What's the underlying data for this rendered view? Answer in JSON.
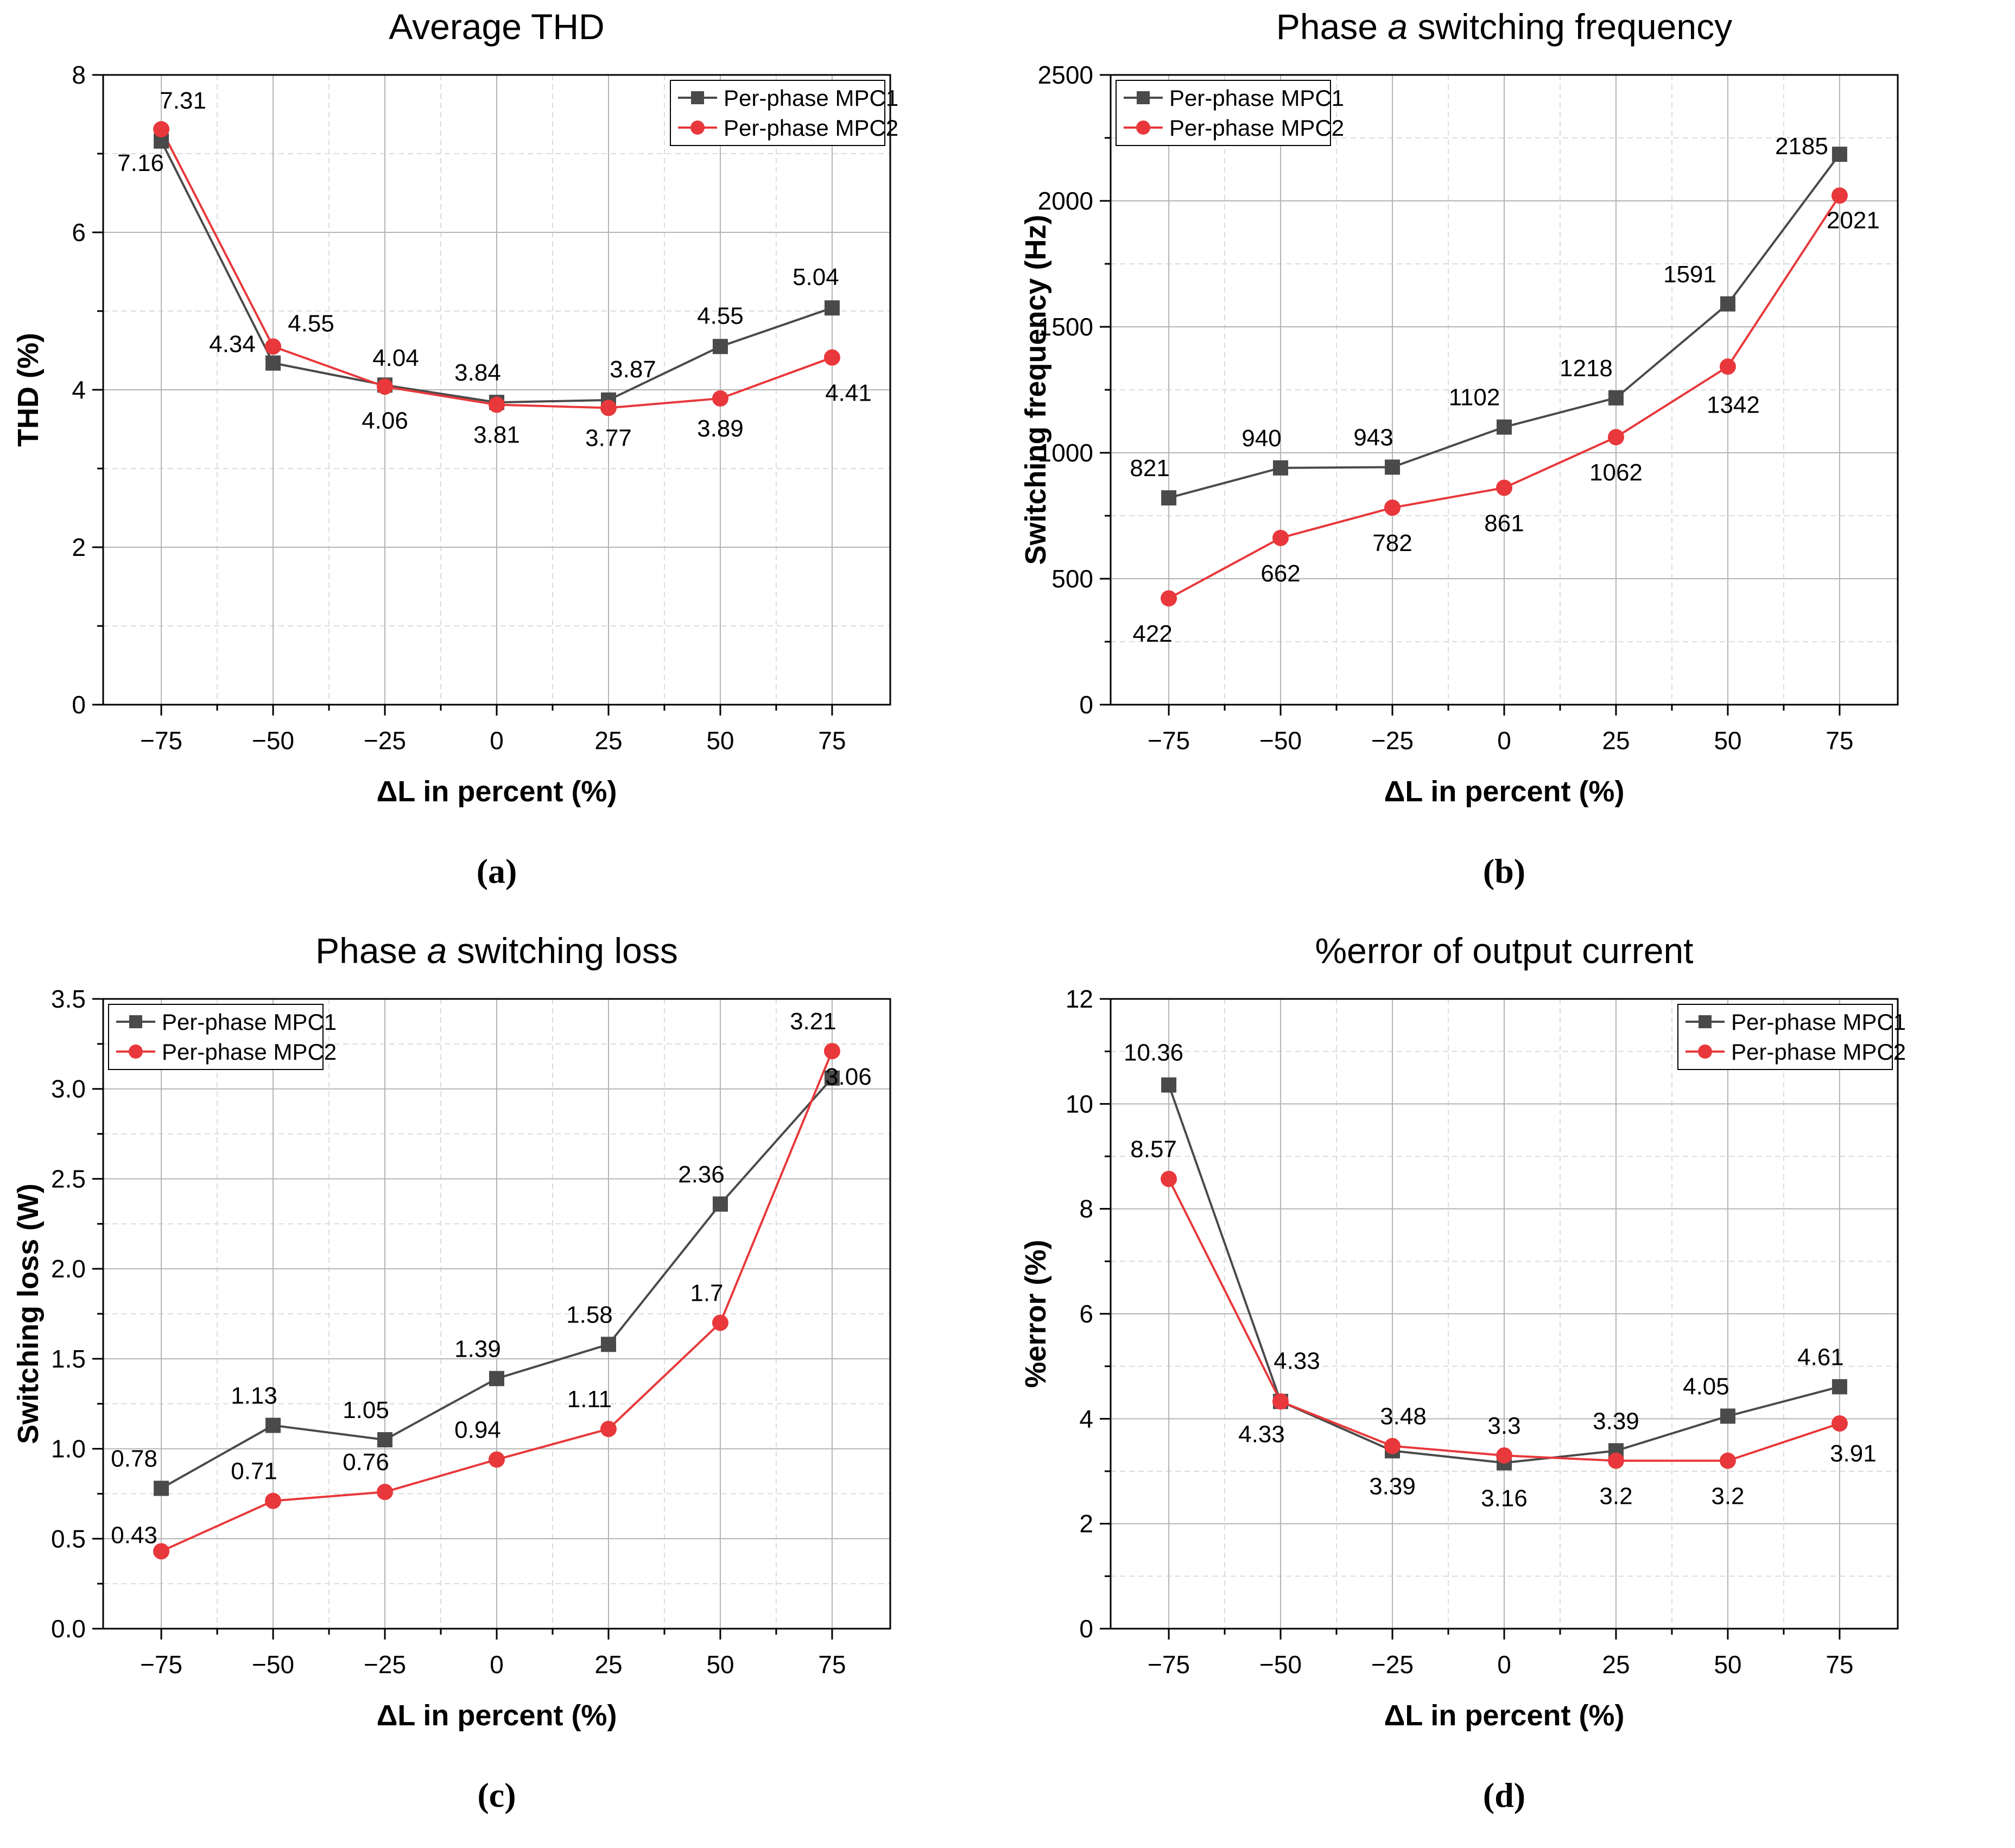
{
  "figure": {
    "panels": [
      {
        "id": "a",
        "caption": "(a)",
        "title_parts": [
          "Average THD"
        ]
      },
      {
        "id": "b",
        "caption": "(b)",
        "title_parts": [
          "Phase ",
          "a",
          " switching frequency"
        ]
      },
      {
        "id": "c",
        "caption": "(c)",
        "title_parts": [
          "Phase ",
          "a",
          " switching loss"
        ]
      },
      {
        "id": "d",
        "caption": "(d)",
        "title_parts": [
          "%error of output current"
        ]
      }
    ]
  },
  "colors": {
    "mpc1": "#4a4a4a",
    "mpc2": "#e8383b",
    "grid_major": "#b4b4b4",
    "grid_minor": "#dcdcdc",
    "axis": "#000000"
  },
  "chart_data": [
    {
      "type": "line",
      "title": "Average THD",
      "xlabel": "ΔL in percent (%)",
      "ylabel": "THD (%)",
      "x": [
        -75,
        -50,
        -25,
        0,
        25,
        50,
        75
      ],
      "xticks": [
        "−75",
        "−50",
        "−25",
        "0",
        "25",
        "50",
        "75"
      ],
      "xlim": [
        -88,
        88
      ],
      "ylim": [
        0,
        8
      ],
      "yticks": [
        "0",
        "2",
        "4",
        "6",
        "8"
      ],
      "ytick_values": [
        0,
        2,
        4,
        6,
        8
      ],
      "legend_position": "top-right",
      "series": [
        {
          "name": "Per-phase MPC1",
          "marker": "square",
          "values": [
            7.16,
            4.34,
            4.06,
            3.84,
            3.87,
            4.55,
            5.04
          ],
          "labels": [
            "7.16",
            "4.34",
            "4.06",
            "3.84",
            "3.87",
            "4.55",
            "5.04"
          ]
        },
        {
          "name": "Per-phase MPC2",
          "marker": "circle",
          "values": [
            7.31,
            4.55,
            4.04,
            3.81,
            3.77,
            3.89,
            4.41
          ],
          "labels": [
            "7.31",
            "4.55",
            "4.04",
            "3.81",
            "3.77",
            "3.89",
            "4.41"
          ]
        }
      ]
    },
    {
      "type": "line",
      "title": "Phase a switching frequency",
      "xlabel": "ΔL in percent (%)",
      "ylabel": "Switching frequency (Hz)",
      "x": [
        -75,
        -50,
        -25,
        0,
        25,
        50,
        75
      ],
      "xticks": [
        "−75",
        "−50",
        "−25",
        "0",
        "25",
        "50",
        "75"
      ],
      "xlim": [
        -88,
        88
      ],
      "ylim": [
        0,
        2500
      ],
      "yticks": [
        "0",
        "500",
        "1000",
        "1500",
        "2000",
        "2500"
      ],
      "ytick_values": [
        0,
        500,
        1000,
        1500,
        2000,
        2500
      ],
      "legend_position": "top-left",
      "series": [
        {
          "name": "Per-phase MPC1",
          "marker": "square",
          "values": [
            821,
            940,
            943,
            1102,
            1218,
            1591,
            2185
          ],
          "labels": [
            "821",
            "940",
            "943",
            "1102",
            "1218",
            "1591",
            "2185"
          ]
        },
        {
          "name": "Per-phase MPC2",
          "marker": "circle",
          "values": [
            422,
            662,
            782,
            861,
            1062,
            1342,
            2021
          ],
          "labels": [
            "422",
            "662",
            "782",
            "861",
            "1062",
            "1342",
            "2021"
          ]
        }
      ]
    },
    {
      "type": "line",
      "title": "Phase a switching loss",
      "xlabel": "ΔL in percent (%)",
      "ylabel": "Switching loss (W)",
      "x": [
        -75,
        -50,
        -25,
        0,
        25,
        50,
        75
      ],
      "xticks": [
        "−75",
        "−50",
        "−25",
        "0",
        "25",
        "50",
        "75"
      ],
      "xlim": [
        -88,
        88
      ],
      "ylim": [
        0,
        3.5
      ],
      "yticks": [
        "0.0",
        "0.5",
        "1.0",
        "1.5",
        "2.0",
        "2.5",
        "3.0",
        "3.5"
      ],
      "ytick_values": [
        0,
        0.5,
        1.0,
        1.5,
        2.0,
        2.5,
        3.0,
        3.5
      ],
      "legend_position": "top-left",
      "series": [
        {
          "name": "Per-phase MPC1",
          "marker": "square",
          "values": [
            0.78,
            1.13,
            1.05,
            1.39,
            1.58,
            2.36,
            3.06
          ],
          "labels": [
            "0.78",
            "1.13",
            "1.05",
            "1.39",
            "1.58",
            "2.36",
            "3.06"
          ]
        },
        {
          "name": "Per-phase MPC2",
          "marker": "circle",
          "values": [
            0.43,
            0.71,
            0.76,
            0.94,
            1.11,
            1.7,
            3.21
          ],
          "labels": [
            "0.43",
            "0.71",
            "0.76",
            "0.94",
            "1.11",
            "1.7",
            "3.21"
          ]
        }
      ]
    },
    {
      "type": "line",
      "title": "%error of output current",
      "xlabel": "ΔL in percent (%)",
      "ylabel": "%error (%)",
      "x": [
        -75,
        -50,
        -25,
        0,
        25,
        50,
        75
      ],
      "xticks": [
        "−75",
        "−50",
        "−25",
        "0",
        "25",
        "50",
        "75"
      ],
      "xlim": [
        -88,
        88
      ],
      "ylim": [
        0,
        12
      ],
      "yticks": [
        "0",
        "2",
        "4",
        "6",
        "8",
        "10",
        "12"
      ],
      "ytick_values": [
        0,
        2,
        4,
        6,
        8,
        10,
        12
      ],
      "legend_position": "top-right",
      "series": [
        {
          "name": "Per-phase MPC1",
          "marker": "square",
          "values": [
            10.36,
            4.33,
            3.39,
            3.16,
            3.39,
            4.05,
            4.61
          ],
          "labels": [
            "10.36",
            "4.33",
            "3.39",
            "3.16",
            "3.39",
            "4.05",
            "4.61"
          ]
        },
        {
          "name": "Per-phase MPC2",
          "marker": "circle",
          "values": [
            8.57,
            4.33,
            3.48,
            3.3,
            3.2,
            3.2,
            3.91
          ],
          "labels": [
            "8.57",
            "4.33",
            "3.48",
            "3.3",
            "3.2",
            "3.2",
            "3.91"
          ]
        }
      ]
    }
  ]
}
